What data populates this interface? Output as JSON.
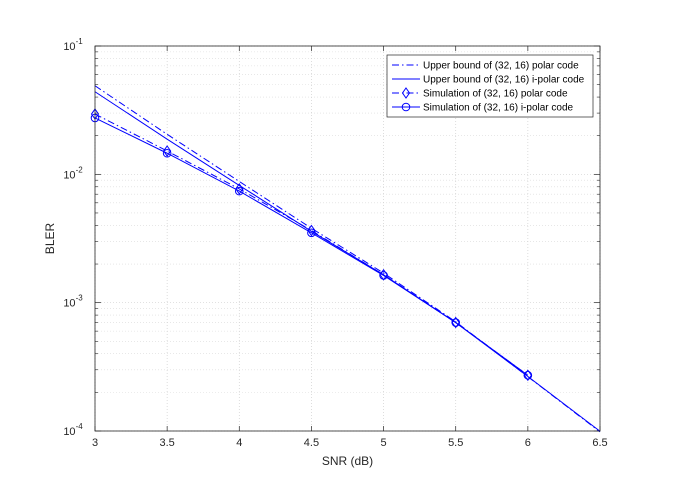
{
  "chart_data": {
    "type": "line",
    "xlabel": "SNR (dB)",
    "ylabel": "BLER",
    "xlim": [
      3,
      6.5
    ],
    "ylim": [
      0.0001,
      0.1
    ],
    "y_scale": "log",
    "grid": true,
    "legend_position": "top-right",
    "x_ticks": [
      {
        "value": 3,
        "label": "3"
      },
      {
        "value": 3.5,
        "label": "3.5"
      },
      {
        "value": 4,
        "label": "4"
      },
      {
        "value": 4.5,
        "label": "4.5"
      },
      {
        "value": 5,
        "label": "5"
      },
      {
        "value": 5.5,
        "label": "5.5"
      },
      {
        "value": 6,
        "label": "6"
      },
      {
        "value": 6.5,
        "label": "6.5"
      }
    ],
    "y_ticks": [
      {
        "value": 0.0001,
        "base": "10",
        "exp": "-4"
      },
      {
        "value": 0.001,
        "base": "10",
        "exp": "-3"
      },
      {
        "value": 0.01,
        "base": "10",
        "exp": "-2"
      },
      {
        "value": 0.1,
        "base": "10",
        "exp": "-1"
      }
    ],
    "series": [
      {
        "name": "Upper bound of (32, 16) polar code",
        "color": "#0000ff",
        "line": "dashdot",
        "marker": "none",
        "x": [
          3,
          3.5,
          4,
          4.5,
          5,
          5.5,
          6,
          6.5
        ],
        "y": [
          0.049,
          0.0205,
          0.0088,
          0.0038,
          0.0017,
          0.00071,
          0.000265,
          9.85e-05
        ]
      },
      {
        "name": "Upper bound of (32, 16) i-polar code",
        "color": "#0000ff",
        "line": "solid",
        "marker": "none",
        "x": [
          3,
          3.5,
          4,
          4.5,
          5,
          5.5,
          6,
          6.5
        ],
        "y": [
          0.044,
          0.0188,
          0.0082,
          0.0036,
          0.00165,
          0.0007,
          0.000266,
          9.95e-05
        ]
      },
      {
        "name": "Simulation of (32, 16) polar code",
        "color": "#0000ff",
        "line": "dashdot",
        "marker": "diamond",
        "x": [
          3,
          3.5,
          4,
          4.5,
          5,
          5.5,
          6
        ],
        "y": [
          0.0295,
          0.0152,
          0.0077,
          0.00365,
          0.00165,
          0.0007,
          0.000272
        ]
      },
      {
        "name": "Simulation of (32, 16) i-polar code",
        "color": "#0000ff",
        "line": "solid",
        "marker": "circle",
        "x": [
          3,
          3.5,
          4,
          4.5,
          5,
          5.5,
          6
        ],
        "y": [
          0.0275,
          0.0146,
          0.0074,
          0.0035,
          0.00163,
          0.0007,
          0.000272
        ]
      }
    ]
  }
}
